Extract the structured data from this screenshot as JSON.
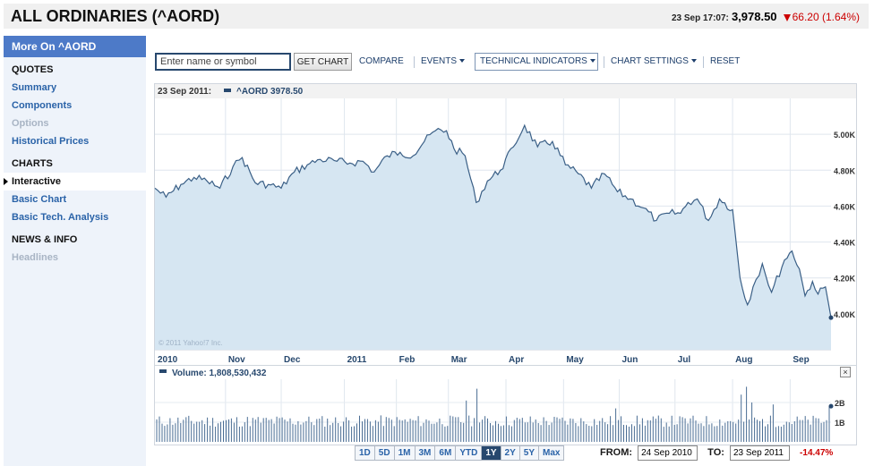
{
  "header": {
    "title": "ALL ORDINARIES (^AORD)",
    "timestamp": "23 Sep 17:07:",
    "price": "3,978.50",
    "change": "66.20 (1.64%)",
    "down_color": "#cc0000"
  },
  "sidebar": {
    "head": "More On ^AORD",
    "sections": [
      {
        "title": "QUOTES",
        "items": [
          {
            "label": "Summary",
            "state": "link"
          },
          {
            "label": "Components",
            "state": "link"
          },
          {
            "label": "Options",
            "state": "disabled"
          },
          {
            "label": "Historical Prices",
            "state": "link"
          }
        ]
      },
      {
        "title": "CHARTS",
        "items": [
          {
            "label": "Interactive",
            "state": "active"
          },
          {
            "label": "Basic Chart",
            "state": "link"
          },
          {
            "label": "Basic Tech. Analysis",
            "state": "link"
          }
        ]
      },
      {
        "title": "NEWS & INFO",
        "items": [
          {
            "label": "Headlines",
            "state": "disabled"
          }
        ]
      }
    ]
  },
  "toolbar": {
    "search_placeholder": "Enter name or symbol",
    "get_chart": "GET CHART",
    "compare": "COMPARE",
    "events": "EVENTS",
    "technical_indicators": "TECHNICAL INDICATORS",
    "chart_settings": "CHART SETTINGS",
    "reset": "RESET"
  },
  "chart": {
    "legend_date": "23 Sep 2011:",
    "legend_series": "^AORD 3978.50",
    "copyright": "© 2011 Yahoo!7 Inc.",
    "volume_legend": "Volume: 1,808,530,432",
    "line_color": "#3a5f86",
    "fill_color": "#d6e6f2"
  },
  "chart_data": [
    {
      "type": "area",
      "x_ticks": [
        "2010",
        "Nov",
        "Dec",
        "2011",
        "Feb",
        "Mar",
        "Apr",
        "May",
        "Jun",
        "Jul",
        "Aug",
        "Sep"
      ],
      "y_ticks": [
        "5.00K",
        "4.80K",
        "4.60K",
        "4.40K",
        "4.20K",
        "4.00K"
      ],
      "ylim": [
        3800,
        5200
      ],
      "grid": true,
      "x_start": "2010-09-24",
      "x_end": "2011-09-23",
      "points": [
        [
          "2010-09-24",
          4700
        ],
        [
          "2010-09-30",
          4650
        ],
        [
          "2010-10-08",
          4720
        ],
        [
          "2010-10-15",
          4760
        ],
        [
          "2010-10-22",
          4740
        ],
        [
          "2010-10-29",
          4700
        ],
        [
          "2010-11-05",
          4820
        ],
        [
          "2010-11-10",
          4870
        ],
        [
          "2010-11-17",
          4730
        ],
        [
          "2010-11-24",
          4720
        ],
        [
          "2010-12-01",
          4700
        ],
        [
          "2010-12-08",
          4790
        ],
        [
          "2010-12-15",
          4830
        ],
        [
          "2010-12-22",
          4860
        ],
        [
          "2010-12-31",
          4850
        ],
        [
          "2011-01-07",
          4840
        ],
        [
          "2011-01-14",
          4850
        ],
        [
          "2011-01-20",
          4790
        ],
        [
          "2011-01-27",
          4880
        ],
        [
          "2011-02-03",
          4900
        ],
        [
          "2011-02-10",
          4880
        ],
        [
          "2011-02-16",
          4960
        ],
        [
          "2011-02-22",
          5020
        ],
        [
          "2011-02-28",
          5020
        ],
        [
          "2011-03-04",
          4920
        ],
        [
          "2011-03-10",
          4880
        ],
        [
          "2011-03-16",
          4620
        ],
        [
          "2011-03-22",
          4740
        ],
        [
          "2011-03-29",
          4800
        ],
        [
          "2011-04-05",
          4930
        ],
        [
          "2011-04-11",
          5050
        ],
        [
          "2011-04-18",
          4930
        ],
        [
          "2011-04-26",
          4960
        ],
        [
          "2011-05-03",
          4830
        ],
        [
          "2011-05-10",
          4780
        ],
        [
          "2011-05-17",
          4700
        ],
        [
          "2011-05-24",
          4780
        ],
        [
          "2011-05-31",
          4680
        ],
        [
          "2011-06-07",
          4640
        ],
        [
          "2011-06-14",
          4590
        ],
        [
          "2011-06-21",
          4520
        ],
        [
          "2011-06-28",
          4560
        ],
        [
          "2011-07-04",
          4560
        ],
        [
          "2011-07-08",
          4620
        ],
        [
          "2011-07-13",
          4640
        ],
        [
          "2011-07-19",
          4520
        ],
        [
          "2011-07-25",
          4640
        ],
        [
          "2011-08-01",
          4580
        ],
        [
          "2011-08-05",
          4200
        ],
        [
          "2011-08-09",
          4050
        ],
        [
          "2011-08-12",
          4150
        ],
        [
          "2011-08-17",
          4280
        ],
        [
          "2011-08-22",
          4120
        ],
        [
          "2011-08-29",
          4300
        ],
        [
          "2011-09-02",
          4350
        ],
        [
          "2011-09-06",
          4250
        ],
        [
          "2011-09-09",
          4100
        ],
        [
          "2011-09-13",
          4180
        ],
        [
          "2011-09-16",
          4110
        ],
        [
          "2011-09-20",
          4150
        ],
        [
          "2011-09-23",
          3978.5
        ]
      ]
    },
    {
      "type": "bar",
      "title": "Volume",
      "y_ticks": [
        "2B",
        "1B"
      ],
      "ylim": [
        0,
        3
      ],
      "typical_volume": 1.0,
      "last_volume": 1.81,
      "spikes": [
        {
          "date": "2011-03-16",
          "value": 2.7
        },
        {
          "date": "2011-03-11",
          "value": 2.1
        },
        {
          "date": "2011-08-05",
          "value": 2.4
        },
        {
          "date": "2011-08-09",
          "value": 2.8
        },
        {
          "date": "2011-08-12",
          "value": 2.0
        },
        {
          "date": "2011-08-23",
          "value": 1.9
        },
        {
          "date": "2011-05-30",
          "value": 1.7
        }
      ]
    }
  ],
  "range_buttons": [
    {
      "label": "1D",
      "selected": false
    },
    {
      "label": "5D",
      "selected": false
    },
    {
      "label": "1M",
      "selected": false
    },
    {
      "label": "3M",
      "selected": false
    },
    {
      "label": "6M",
      "selected": false
    },
    {
      "label": "YTD",
      "selected": false
    },
    {
      "label": "1Y",
      "selected": true
    },
    {
      "label": "2Y",
      "selected": false
    },
    {
      "label": "5Y",
      "selected": false
    },
    {
      "label": "Max",
      "selected": false
    }
  ],
  "date_range": {
    "from_label": "FROM:",
    "from": "24 Sep 2010",
    "to_label": "TO:",
    "to": "23 Sep 2011",
    "pct_change": "-14.47%"
  }
}
